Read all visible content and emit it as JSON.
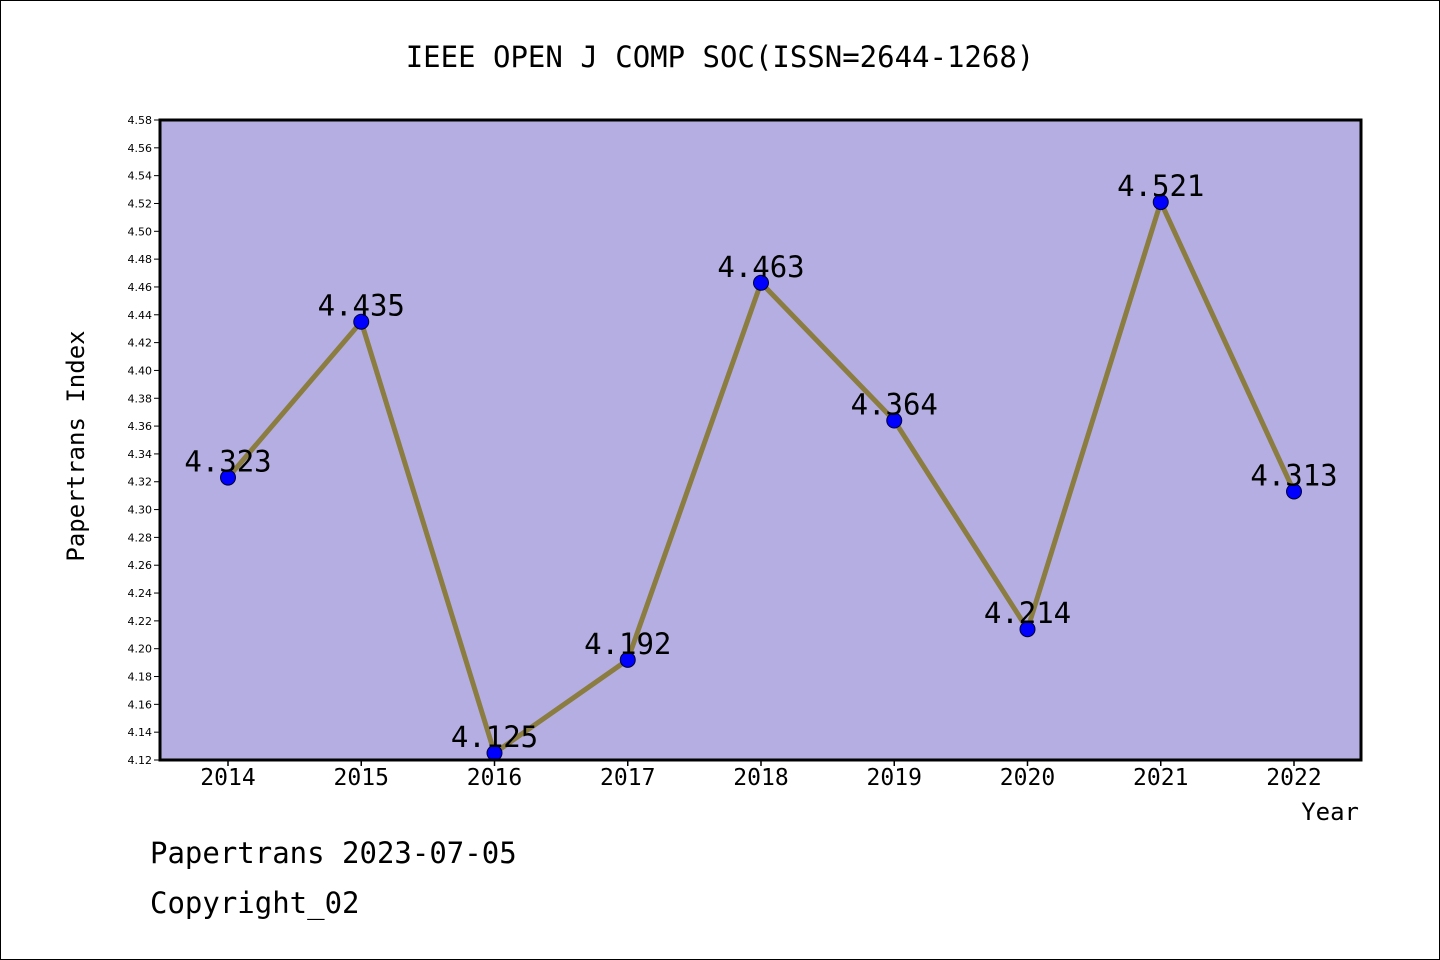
{
  "chart_data": {
    "type": "line",
    "title": "IEEE OPEN J COMP SOC(ISSN=2644-1268)",
    "xlabel": "Year",
    "ylabel": "Papertrans Index",
    "categories": [
      "2014",
      "2015",
      "2016",
      "2017",
      "2018",
      "2019",
      "2020",
      "2021",
      "2022"
    ],
    "values": [
      4.323,
      4.435,
      4.125,
      4.192,
      4.463,
      4.364,
      4.214,
      4.521,
      4.313
    ],
    "data_labels": [
      "4.323",
      "4.435",
      "4.125",
      "4.192",
      "4.463",
      "4.364",
      "4.214",
      "4.521",
      "4.313"
    ],
    "ylim": [
      4.12,
      4.58
    ],
    "ytick_step": 0.02,
    "ytick_labels": [
      "4.12",
      "4.14",
      "4.16",
      "4.18",
      "4.20",
      "4.22",
      "4.24",
      "4.26",
      "4.28",
      "4.30",
      "4.32",
      "4.34",
      "4.36",
      "4.38",
      "4.40",
      "4.42",
      "4.44",
      "4.46",
      "4.48",
      "4.50",
      "4.52",
      "4.54",
      "4.56",
      "4.58"
    ],
    "grid": false,
    "colors": {
      "plot_background": "#b5aee2",
      "line": "#8b7d3f",
      "marker": "#0000ff",
      "axis": "#000000"
    }
  },
  "footer": {
    "line1": "Papertrans 2023-07-05",
    "line2": "Copyright_02"
  }
}
